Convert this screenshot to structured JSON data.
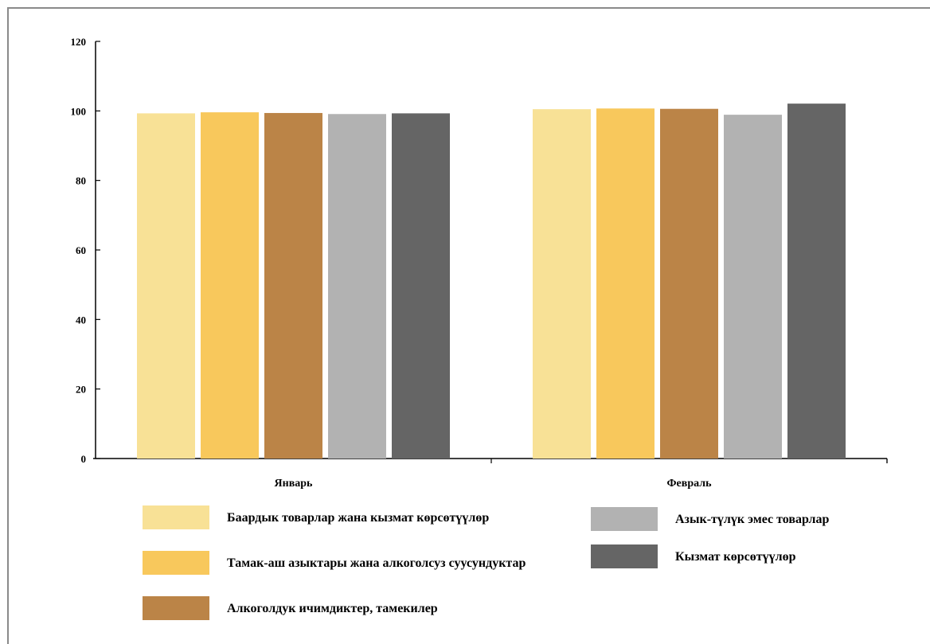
{
  "chart_data": {
    "type": "bar",
    "title": "",
    "xlabel": "",
    "ylabel": "",
    "categories": [
      "Январь",
      "Февраль"
    ],
    "ylim": [
      0,
      120
    ],
    "yticks": [
      0,
      20,
      40,
      60,
      80,
      100,
      120
    ],
    "grid": false,
    "legend_position": "bottom",
    "series": [
      {
        "name": "Баардык товарлар жана кызмат көрсөтүүлөр",
        "color": "#f8e196",
        "values": [
          99.3,
          100.5
        ]
      },
      {
        "name": "Тамак-аш азыктары жана алкоголсуз суусундуктар",
        "color": "#f8c85c",
        "values": [
          99.6,
          100.7
        ]
      },
      {
        "name": "Алкоголдук ичимдиктер, тамекилер",
        "color": "#bb8447",
        "values": [
          99.4,
          100.6
        ]
      },
      {
        "name": "Азык-түлүк эмес товарлар",
        "color": "#b2b2b2",
        "values": [
          99.1,
          98.9
        ]
      },
      {
        "name": "Кызмат көрсөтүүлөр",
        "color": "#656565",
        "values": [
          99.3,
          102.1
        ]
      }
    ]
  }
}
